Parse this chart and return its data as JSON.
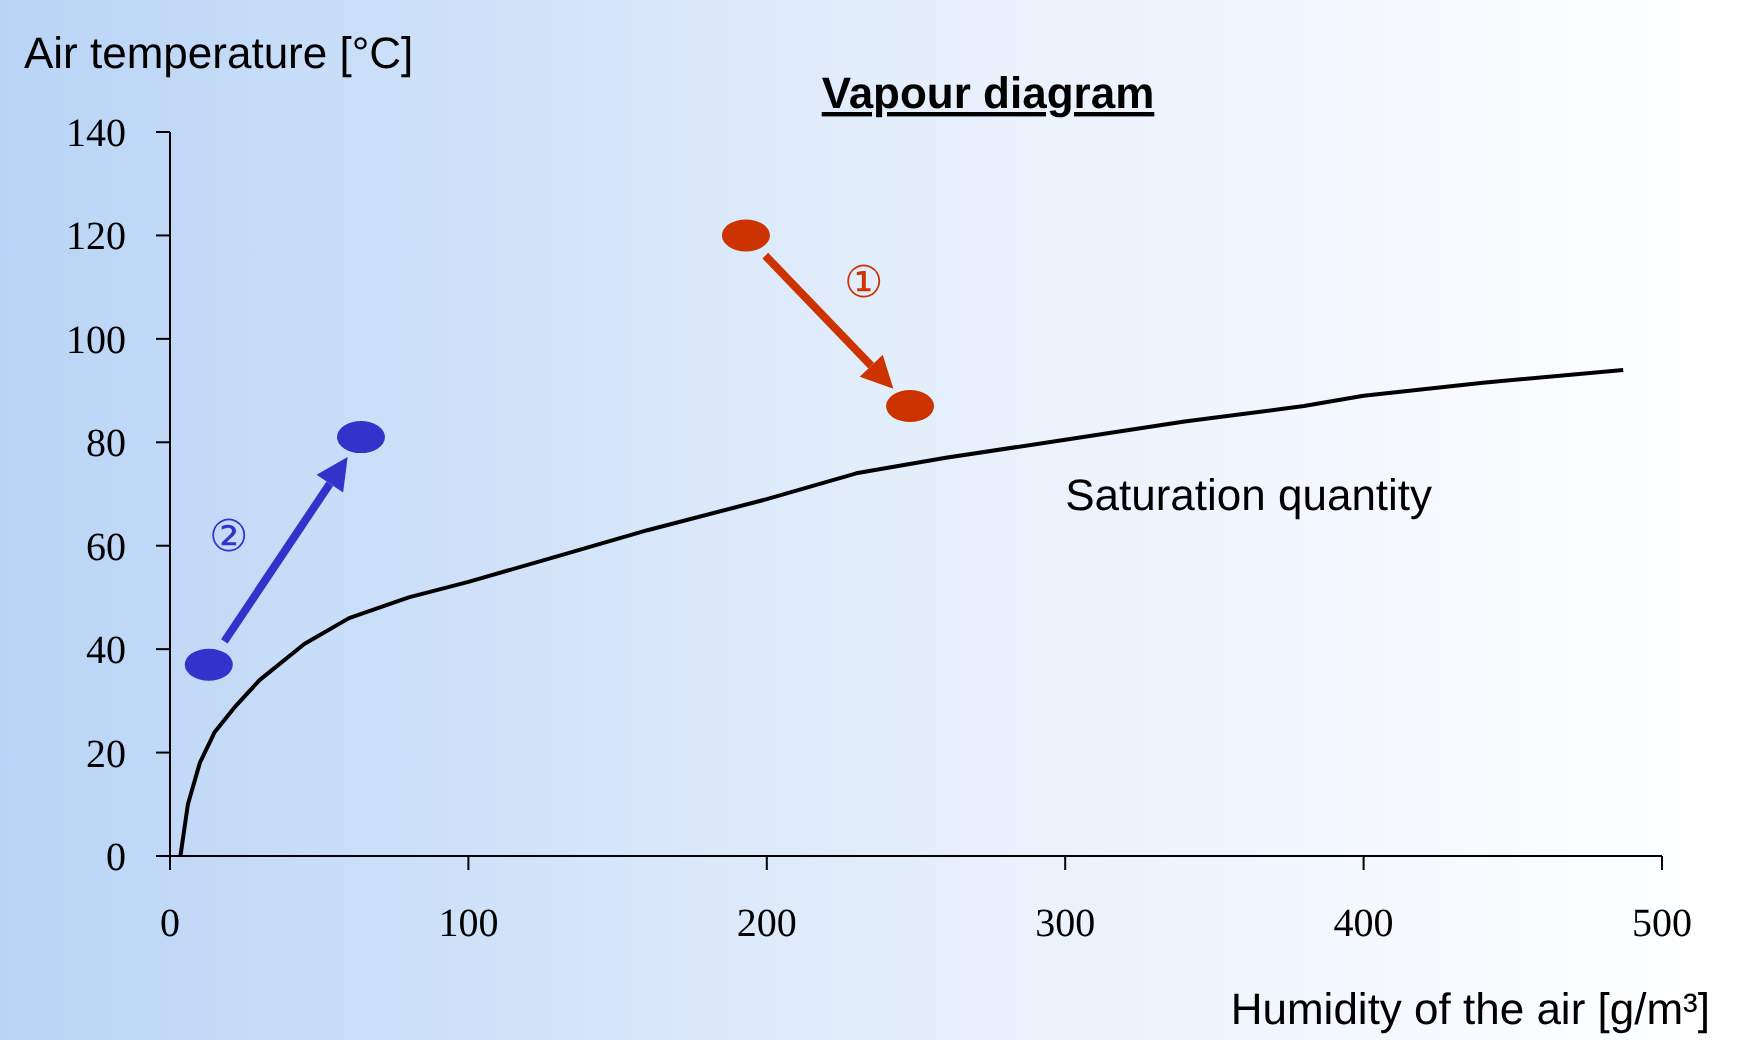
{
  "chart_data": {
    "type": "line",
    "title": "Vapour diagram",
    "xlabel": "Humidity of the air [g/m³]",
    "ylabel": "Air temperature [°C]",
    "xlim": [
      0,
      500
    ],
    "xticks": [
      0,
      100,
      200,
      300,
      400,
      500
    ],
    "ylim": [
      0,
      140
    ],
    "yticks": [
      0,
      20,
      40,
      60,
      80,
      100,
      120,
      140
    ],
    "grid": false,
    "legend": false,
    "series": [
      {
        "name": "Saturation quantity",
        "color": "#000000",
        "x": [
          3.5,
          6,
          10,
          15,
          22,
          30,
          45,
          60,
          80,
          100,
          130,
          160,
          200,
          230,
          260,
          300,
          340,
          380,
          400,
          440,
          487
        ],
        "values": [
          0,
          10,
          18,
          24,
          29,
          34,
          41,
          46,
          50,
          53,
          58,
          63,
          69,
          74,
          77,
          80.5,
          84,
          87,
          89,
          91.5,
          94
        ]
      },
      {
        "type": "scatter",
        "color": "#cc3300",
        "marker": "circle",
        "x": [
          193,
          248
        ],
        "values": [
          120,
          87
        ]
      },
      {
        "type": "scatter",
        "color": "#3333cc",
        "marker": "circle",
        "x": [
          13,
          64
        ],
        "values": [
          37,
          81
        ]
      }
    ],
    "annotations": [
      "①",
      "②"
    ]
  }
}
